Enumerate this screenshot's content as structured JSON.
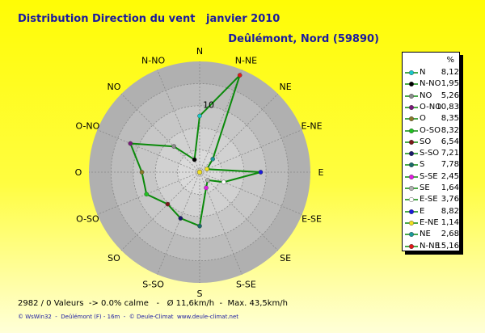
{
  "title": "Distribution Direction du vent   janvier 2010",
  "location": "Deûlémont, Nord (59890)",
  "stats": "2982 / 0 Valeurs  -> 0.0% calme   -   Ø 11,6km/h  -  Max. 43,5km/h",
  "footer": "© WsWin32  -  Deûlémont (F) - 16m  -  © Deule-Climat  www.deule-climat.net",
  "legend_header": "%",
  "colors": {
    "series_line": "#0b8a0b",
    "disc_outer": "#b3b3b3",
    "disc_inner": "#d4d4d4"
  },
  "chart_data": {
    "type": "polar-line",
    "radial_max": 16,
    "radial_tick_labels": [
      "10"
    ],
    "directions": [
      "N",
      "N-NE",
      "NE",
      "E-NE",
      "E",
      "E-SE",
      "SE",
      "S-SE",
      "S",
      "S-SO",
      "SO",
      "O-SO",
      "O",
      "O-NO",
      "NO",
      "N-NO"
    ],
    "series": [
      {
        "values": [
          8.12,
          15.16,
          2.68,
          1.14,
          8.82,
          3.76,
          1.64,
          2.45,
          7.78,
          7.21,
          6.54,
          8.32,
          8.35,
          10.83,
          5.26,
          1.95
        ]
      }
    ],
    "legend": [
      {
        "name": "N",
        "value": "8,12",
        "color": "#19c8c8"
      },
      {
        "name": "N-NO",
        "value": "1,95",
        "color": "#000000"
      },
      {
        "name": "NO",
        "value": "5,26",
        "color": "#8c8c8c"
      },
      {
        "name": "O-NO",
        "value": "10,83",
        "color": "#7a1a7a"
      },
      {
        "name": "O",
        "value": "8,35",
        "color": "#8a7a2a"
      },
      {
        "name": "O-SO",
        "value": "8,32",
        "color": "#20c020"
      },
      {
        "name": "SO",
        "value": "6,54",
        "color": "#7a1818"
      },
      {
        "name": "S-SO",
        "value": "7,21",
        "color": "#1a1a6a"
      },
      {
        "name": "S",
        "value": "7,78",
        "color": "#1a6a6a"
      },
      {
        "name": "S-SE",
        "value": "2,45",
        "color": "#e020e0"
      },
      {
        "name": "SE",
        "value": "1,64",
        "color": "#b0b0b0"
      },
      {
        "name": "E-SE",
        "value": "3,76",
        "color": "#ffffff"
      },
      {
        "name": "E",
        "value": "8,82",
        "color": "#1a1ad8"
      },
      {
        "name": "E-NE",
        "value": "1,14",
        "color": "#f0e020"
      },
      {
        "name": "NE",
        "value": "2,68",
        "color": "#1a9a9a"
      },
      {
        "name": "N-NE",
        "value": "15,16",
        "color": "#e01a1a"
      }
    ]
  }
}
